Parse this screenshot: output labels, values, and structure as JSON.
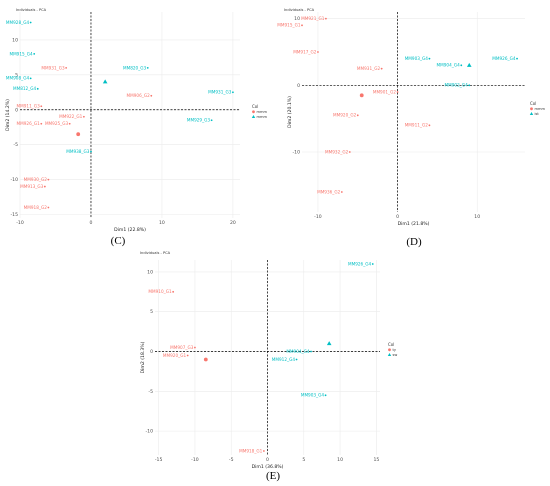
{
  "figure": {
    "labels": {
      "c": "(C)",
      "d": "(D)",
      "e": "(E)"
    }
  },
  "palette": {
    "red": "#f8766d",
    "teal": "#00bfc4",
    "grid": "#ebebeb",
    "zero": "#000000"
  },
  "chart_data": [
    {
      "type": "scatter",
      "title": "Individuals - PCA",
      "xlabel": "Dim1 (22.8%)",
      "ylabel": "Dim2 (14.2%)",
      "xlim": [
        -10,
        21
      ],
      "ylim": [
        -15.5,
        14
      ],
      "xticks": [
        -10,
        0,
        10,
        20
      ],
      "yticks": [
        -15,
        -10,
        -5,
        0,
        5,
        10
      ],
      "grid": true,
      "legend": {
        "title": "Col",
        "position": "right",
        "entries": [
          "mmm",
          "mmm"
        ]
      },
      "points": [
        {
          "label": "MM928_G4",
          "x": -8.5,
          "y": 12.5,
          "group": 1
        },
        {
          "label": "MM915_G4",
          "x": -8,
          "y": 8,
          "group": 1
        },
        {
          "label": "MM931_G3",
          "x": -3.5,
          "y": 6,
          "group": 0
        },
        {
          "label": "MM908_G4",
          "x": -8.5,
          "y": 4.5,
          "group": 1
        },
        {
          "label": "MM812_G4",
          "x": -7.5,
          "y": 3,
          "group": 1
        },
        {
          "label": "MM911_G3",
          "x": -7,
          "y": 0.5,
          "group": 0
        },
        {
          "label": "MM926_G1",
          "x": -7,
          "y": -2,
          "group": 0
        },
        {
          "label": "MM922_G1",
          "x": -1,
          "y": -1,
          "group": 0
        },
        {
          "label": "MM925_G3",
          "x": -3,
          "y": -2,
          "group": 0
        },
        {
          "label": "MM820_G3",
          "x": 8,
          "y": 6,
          "group": 1
        },
        {
          "label": "MM906_G2",
          "x": 8.5,
          "y": 2,
          "group": 0
        },
        {
          "label": "MM931_G3",
          "x": 20,
          "y": 2.5,
          "group": 1
        },
        {
          "label": "MM929_G3",
          "x": 17,
          "y": -1.5,
          "group": 1
        },
        {
          "label": "MM938_G3",
          "x": 0,
          "y": -6,
          "group": 1
        },
        {
          "label": "MM930_G2",
          "x": -6,
          "y": -10,
          "group": 0
        },
        {
          "label": "MM913_G3",
          "x": -6.5,
          "y": -11,
          "group": 0
        },
        {
          "label": "MM918_G2",
          "x": -6,
          "y": -14,
          "group": 0
        }
      ],
      "centroids": [
        {
          "x": -1.8,
          "y": -3.5,
          "group": 0
        },
        {
          "x": 2,
          "y": 4,
          "group": 1
        }
      ]
    },
    {
      "type": "scatter",
      "title": "Individuals - PCA",
      "xlabel": "Dim1 (21.8%)",
      "ylabel": "Dim2 (20.1%)",
      "xlim": [
        -12,
        16
      ],
      "ylim": [
        -19,
        11
      ],
      "xticks": [
        -10,
        0,
        10
      ],
      "yticks": [
        -10,
        0,
        10
      ],
      "grid": true,
      "legend": {
        "title": "Col",
        "position": "right",
        "entries": [
          "mmm",
          "ist"
        ]
      },
      "points": [
        {
          "label": "MM921_G1",
          "x": -9,
          "y": 10,
          "group": 0
        },
        {
          "label": "MM915_G1",
          "x": -12,
          "y": 9,
          "group": 0
        },
        {
          "label": "MM917_G2",
          "x": -10,
          "y": 5,
          "group": 0
        },
        {
          "label": "MM903_G4",
          "x": 4,
          "y": 4,
          "group": 1
        },
        {
          "label": "MM904_G4",
          "x": 8,
          "y": 3,
          "group": 1
        },
        {
          "label": "MM926_G4",
          "x": 15,
          "y": 4,
          "group": 1
        },
        {
          "label": "MM931_G2",
          "x": -2,
          "y": 2.5,
          "group": 0
        },
        {
          "label": "MM902_G4",
          "x": 9,
          "y": 0,
          "group": 1
        },
        {
          "label": "MM901_G2",
          "x": 0,
          "y": -1,
          "group": 0
        },
        {
          "label": "MM920_G2",
          "x": -5,
          "y": -4.5,
          "group": 0
        },
        {
          "label": "MM911_G2",
          "x": 4,
          "y": -6,
          "group": 0
        },
        {
          "label": "MM932_G2",
          "x": -6,
          "y": -10,
          "group": 0
        },
        {
          "label": "MM936_G2",
          "x": -7,
          "y": -16,
          "group": 0
        }
      ],
      "centroids": [
        {
          "x": -4.5,
          "y": -1.5,
          "group": 0
        },
        {
          "x": 9,
          "y": 3,
          "group": 1
        }
      ]
    },
    {
      "type": "scatter",
      "title": "Individuals - PCA",
      "xlabel": "Dim1 (36.8%)",
      "ylabel": "Dim2 (18.3%)",
      "xlim": [
        -15.5,
        15.5
      ],
      "ylim": [
        -13,
        11.5
      ],
      "xticks": [
        -15,
        -10,
        -5,
        0,
        5,
        10,
        15
      ],
      "yticks": [
        -10,
        -5,
        0,
        5,
        10
      ],
      "grid": true,
      "legend": {
        "title": "Col",
        "position": "right",
        "entries": [
          "ty",
          "sw"
        ]
      },
      "points": [
        {
          "label": "MM926_G4",
          "x": 14.5,
          "y": 11,
          "group": 1
        },
        {
          "label": "MM910_G1",
          "x": -13,
          "y": 7.5,
          "group": 0
        },
        {
          "label": "MM907_G3",
          "x": -10,
          "y": 0.5,
          "group": 0
        },
        {
          "label": "MM920_G1",
          "x": -11,
          "y": -0.5,
          "group": 0
        },
        {
          "label": "MM904_G4",
          "x": 6,
          "y": 0,
          "group": 1
        },
        {
          "label": "MM912_G4",
          "x": 4,
          "y": -1,
          "group": 1
        },
        {
          "label": "MM903_G4",
          "x": 8,
          "y": -5.5,
          "group": 1
        },
        {
          "label": "MM918_G1",
          "x": -0.5,
          "y": -12.5,
          "group": 0
        }
      ],
      "centroids": [
        {
          "x": -8.5,
          "y": -1,
          "group": 0
        },
        {
          "x": 8.5,
          "y": 1,
          "group": 1
        }
      ]
    }
  ]
}
